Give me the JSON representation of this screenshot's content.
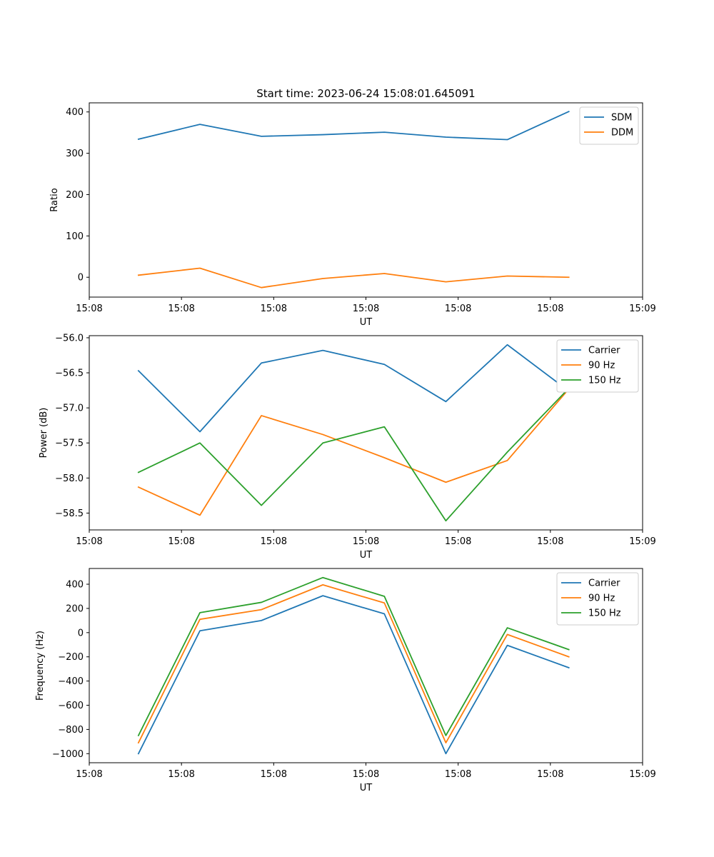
{
  "figure": {
    "title": "Start time: 2023-06-24 15:08:01.645091"
  },
  "chart_data": [
    {
      "type": "line",
      "title": "Start time: 2023-06-24 15:08:01.645091",
      "xlabel": "UT",
      "ylabel": "Ratio",
      "x": [
        1,
        2,
        3,
        4,
        5,
        6,
        7,
        8
      ],
      "xlim": [
        0.2,
        9.2
      ],
      "x_ticks": [
        0.2,
        1.7,
        3.2,
        4.7,
        6.2,
        7.7,
        9.2
      ],
      "x_tick_labels": [
        "15:08",
        "15:08",
        "15:08",
        "15:08",
        "15:08",
        "15:08",
        "15:09"
      ],
      "ylim": [
        -48,
        422
      ],
      "y_ticks": [
        0,
        100,
        200,
        300,
        400
      ],
      "y_tick_labels": [
        "0",
        "100",
        "200",
        "300",
        "400"
      ],
      "legend_position": "top-right",
      "grid": false,
      "series": [
        {
          "name": "SDM",
          "color": "#1f77b4",
          "values": [
            334,
            370,
            341,
            345,
            351,
            339,
            333,
            401
          ]
        },
        {
          "name": "DDM",
          "color": "#ff7f0e",
          "values": [
            5,
            22,
            -25,
            -3,
            9,
            -11,
            3,
            0
          ]
        }
      ]
    },
    {
      "type": "line",
      "title": "",
      "xlabel": "UT",
      "ylabel": "Power (dB)",
      "x": [
        1,
        2,
        3,
        4,
        5,
        6,
        7,
        8
      ],
      "xlim": [
        0.2,
        9.2
      ],
      "x_ticks": [
        0.2,
        1.7,
        3.2,
        4.7,
        6.2,
        7.7,
        9.2
      ],
      "x_tick_labels": [
        "15:08",
        "15:08",
        "15:08",
        "15:08",
        "15:08",
        "15:08",
        "15:09"
      ],
      "ylim": [
        -58.74,
        -55.97
      ],
      "y_ticks": [
        -58.5,
        -58.0,
        -57.5,
        -57.0,
        -56.5,
        -56.0
      ],
      "y_tick_labels": [
        "−58.5",
        "−58.0",
        "−57.5",
        "−57.0",
        "−56.5",
        "−56.0"
      ],
      "legend_position": "top-right",
      "grid": false,
      "series": [
        {
          "name": "Carrier",
          "color": "#1f77b4",
          "values": [
            -56.47,
            -57.34,
            -56.36,
            -56.18,
            -56.38,
            -56.91,
            -56.1,
            -56.76
          ]
        },
        {
          "name": "90 Hz",
          "color": "#ff7f0e",
          "values": [
            -58.13,
            -58.53,
            -57.11,
            -57.38,
            -57.71,
            -58.06,
            -57.75,
            -56.73
          ]
        },
        {
          "name": "150 Hz",
          "color": "#2ca02c",
          "values": [
            -57.92,
            -57.5,
            -58.39,
            -57.5,
            -57.27,
            -58.61,
            -57.63,
            -56.72
          ]
        }
      ]
    },
    {
      "type": "line",
      "title": "",
      "xlabel": "UT",
      "ylabel": "Frequency (Hz)",
      "x": [
        1,
        2,
        3,
        4,
        5,
        6,
        7,
        8
      ],
      "xlim": [
        0.2,
        9.2
      ],
      "x_ticks": [
        0.2,
        1.7,
        3.2,
        4.7,
        6.2,
        7.7,
        9.2
      ],
      "x_tick_labels": [
        "15:08",
        "15:08",
        "15:08",
        "15:08",
        "15:08",
        "15:08",
        "15:09"
      ],
      "ylim": [
        -1075,
        530
      ],
      "y_ticks": [
        -1000,
        -800,
        -600,
        -400,
        -200,
        0,
        200,
        400
      ],
      "y_tick_labels": [
        "−1000",
        "−800",
        "−600",
        "−400",
        "−200",
        "0",
        "200",
        "400"
      ],
      "legend_position": "top-right",
      "grid": false,
      "series": [
        {
          "name": "Carrier",
          "color": "#1f77b4",
          "values": [
            -1000,
            15,
            100,
            305,
            155,
            -1000,
            -105,
            -290
          ]
        },
        {
          "name": "90 Hz",
          "color": "#ff7f0e",
          "values": [
            -910,
            110,
            190,
            395,
            245,
            -910,
            -15,
            -200
          ]
        },
        {
          "name": "150 Hz",
          "color": "#2ca02c",
          "values": [
            -850,
            165,
            250,
            455,
            300,
            -850,
            40,
            -140
          ]
        }
      ]
    }
  ]
}
